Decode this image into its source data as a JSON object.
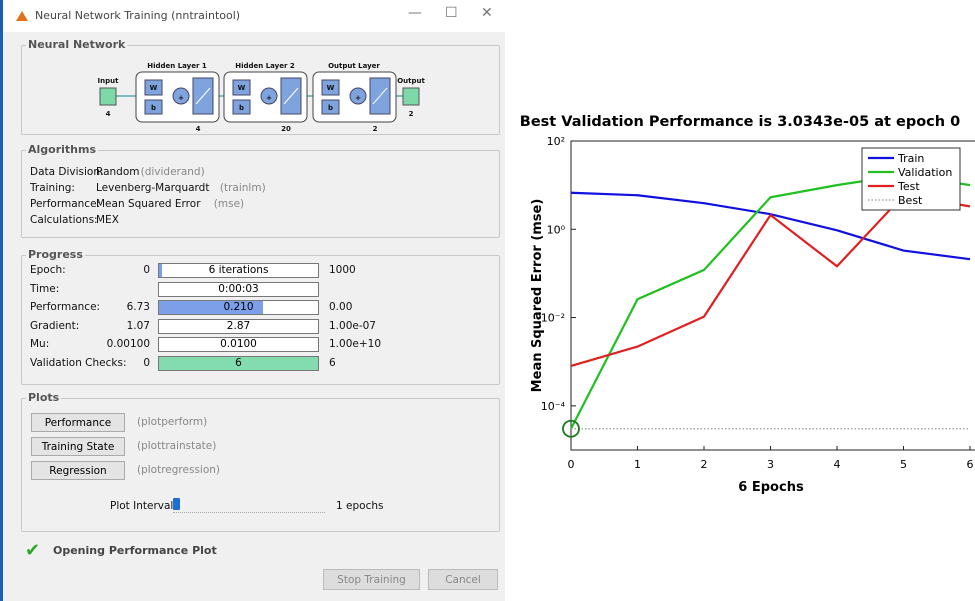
{
  "window": {
    "title": "Neural Network Training (nntraintool)"
  },
  "network": {
    "section": "Neural Network",
    "weight": "W",
    "bias": "b",
    "input": {
      "label": "Input",
      "size": "4"
    },
    "layers": [
      {
        "label": "Hidden Layer 1",
        "size": "4"
      },
      {
        "label": "Hidden Layer 2",
        "size": "20"
      },
      {
        "label": "Output Layer",
        "size": "2"
      }
    ],
    "output": {
      "label": "Output",
      "size": "2"
    }
  },
  "algorithms": {
    "section": "Algorithms",
    "rows": [
      {
        "label": "Data Division:",
        "value": "Random",
        "fn": "(dividerand)"
      },
      {
        "label": "Training:",
        "value": "Levenberg-Marquardt",
        "fn": "(trainlm)"
      },
      {
        "label": "Performance:",
        "value": "Mean Squared Error",
        "fn": "(mse)"
      },
      {
        "label": "Calculations:",
        "value": "MEX"
      }
    ]
  },
  "progress": {
    "section": "Progress",
    "rows": [
      {
        "label": "Epoch:",
        "start": "0",
        "current": "6 iterations",
        "end": "1000"
      },
      {
        "label": "Time:",
        "current": "0:00:03"
      },
      {
        "label": "Performance:",
        "start": "6.73",
        "current": "0.210",
        "end": "0.00"
      },
      {
        "label": "Gradient:",
        "start": "1.07",
        "current": "2.87",
        "end": "1.00e-07"
      },
      {
        "label": "Mu:",
        "start": "0.00100",
        "current": "0.0100",
        "end": "1.00e+10"
      },
      {
        "label": "Validation Checks:",
        "start": "0",
        "current": "6",
        "end": "6"
      }
    ]
  },
  "plots": {
    "section": "Plots",
    "buttons": [
      {
        "label": "Performance",
        "fn": "(plotperform)"
      },
      {
        "label": "Training State",
        "fn": "(plottrainstate)"
      },
      {
        "label": "Regression",
        "fn": "(plotregression)"
      }
    ],
    "interval_label": "Plot Interval:",
    "interval_value": "1 epochs"
  },
  "status": "Opening Performance Plot",
  "actions": {
    "stop": "Stop Training",
    "cancel": "Cancel"
  },
  "chart_data": {
    "type": "line",
    "title": "Best Validation Performance is 3.0343e-05 at epoch 0",
    "x_label": "6 Epochs",
    "y_label": "Mean Squared Error  (mse)",
    "x": [
      0,
      1,
      2,
      3,
      4,
      5,
      6
    ],
    "xlim": [
      0,
      6
    ],
    "xticks": [
      0,
      1,
      2,
      3,
      4,
      5,
      6
    ],
    "yscale": "log",
    "ylim": [
      1e-05,
      100
    ],
    "yticks": [
      {
        "value": 0.0001,
        "label": "10⁻⁴"
      },
      {
        "value": 0.01,
        "label": "10⁻²"
      },
      {
        "value": 1,
        "label": "10⁰"
      },
      {
        "value": 100,
        "label": "10²"
      }
    ],
    "legend": "upper right",
    "series": [
      {
        "name": "Train",
        "color": "#1010e0",
        "values": [
          6.73,
          5.9,
          3.9,
          2.2,
          0.95,
          0.33,
          0.21
        ]
      },
      {
        "name": "Validation",
        "color": "#20c020",
        "values": [
          3.0343e-05,
          0.026,
          0.12,
          5.3,
          10,
          17,
          10
        ]
      },
      {
        "name": "Test",
        "color": "#e02020",
        "values": [
          0.0008,
          0.0022,
          0.0105,
          2.1,
          0.145,
          5.9,
          3.3
        ]
      },
      {
        "name": "Best",
        "color": "#999999",
        "linestyle": "dotted",
        "values": [
          3.0343e-05,
          3.0343e-05,
          3.0343e-05,
          3.0343e-05,
          3.0343e-05,
          3.0343e-05,
          3.0343e-05
        ]
      }
    ]
  }
}
